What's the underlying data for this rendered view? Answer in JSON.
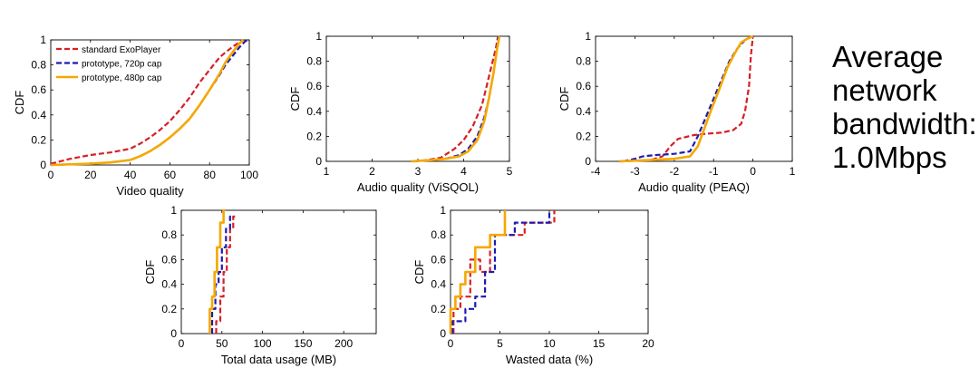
{
  "side_note": {
    "line1": "Average",
    "line2": "network",
    "line3": "bandwidth:",
    "line4": "1.0Mbps"
  },
  "colors": {
    "standard": "#d42027",
    "p720": "#1c1cb0",
    "p480": "#f5a800"
  },
  "chart_data": [
    {
      "type": "line",
      "title": "",
      "xlabel": "Video quality",
      "ylabel": "CDF",
      "xlim": [
        0,
        100
      ],
      "ylim": [
        0,
        1
      ],
      "xticks": [
        0,
        20,
        40,
        60,
        80,
        100
      ],
      "yticks": [
        0,
        0.2,
        0.4,
        0.6,
        0.8,
        1
      ],
      "legend": {
        "placement": "top-left",
        "entries": [
          "standard ExoPlayer",
          "prototype, 720p cap",
          "prototype, 480p cap"
        ]
      },
      "series": [
        {
          "name": "standard ExoPlayer",
          "color": "standard",
          "dash": true,
          "x": [
            0,
            10,
            20,
            30,
            40,
            45,
            50,
            55,
            60,
            65,
            70,
            75,
            80,
            85,
            88,
            92,
            95,
            97
          ],
          "y": [
            0.01,
            0.05,
            0.08,
            0.1,
            0.13,
            0.17,
            0.22,
            0.28,
            0.35,
            0.44,
            0.54,
            0.66,
            0.76,
            0.86,
            0.9,
            0.95,
            0.98,
            1.0
          ]
        },
        {
          "name": "prototype, 720p cap",
          "color": "p720",
          "dash": true,
          "x": [
            0,
            20,
            30,
            40,
            45,
            50,
            55,
            60,
            65,
            70,
            75,
            80,
            85,
            88,
            92,
            95,
            98,
            100
          ],
          "y": [
            0.0,
            0.01,
            0.02,
            0.04,
            0.07,
            0.11,
            0.16,
            0.22,
            0.29,
            0.37,
            0.48,
            0.6,
            0.72,
            0.8,
            0.88,
            0.94,
            0.99,
            1.0
          ]
        },
        {
          "name": "prototype, 480p cap",
          "color": "p480",
          "dash": false,
          "x": [
            0,
            20,
            30,
            40,
            45,
            50,
            55,
            60,
            65,
            70,
            75,
            80,
            85,
            88,
            92,
            95,
            97
          ],
          "y": [
            0.0,
            0.01,
            0.02,
            0.04,
            0.07,
            0.11,
            0.16,
            0.22,
            0.29,
            0.37,
            0.48,
            0.6,
            0.73,
            0.82,
            0.91,
            0.97,
            1.0
          ]
        }
      ]
    },
    {
      "type": "line",
      "title": "",
      "xlabel": "Audio quality (ViSQOL)",
      "ylabel": "CDF",
      "xlim": [
        1,
        5
      ],
      "ylim": [
        0,
        1
      ],
      "xticks": [
        1,
        2,
        3,
        4,
        5
      ],
      "yticks": [
        0,
        0.2,
        0.4,
        0.6,
        0.8,
        1
      ],
      "series": [
        {
          "name": "standard ExoPlayer",
          "color": "standard",
          "dash": true,
          "x": [
            2.9,
            3.2,
            3.5,
            3.8,
            4.0,
            4.2,
            4.4,
            4.5,
            4.6,
            4.7,
            4.75
          ],
          "y": [
            0.0,
            0.01,
            0.03,
            0.1,
            0.17,
            0.28,
            0.45,
            0.6,
            0.75,
            0.9,
            1.0
          ]
        },
        {
          "name": "prototype, 720p cap",
          "color": "p720",
          "dash": true,
          "x": [
            2.9,
            3.3,
            3.6,
            3.9,
            4.1,
            4.3,
            4.45,
            4.55,
            4.65,
            4.72,
            4.76
          ],
          "y": [
            0.0,
            0.01,
            0.02,
            0.05,
            0.1,
            0.2,
            0.35,
            0.5,
            0.7,
            0.88,
            1.0
          ]
        },
        {
          "name": "prototype, 480p cap",
          "color": "p480",
          "dash": false,
          "x": [
            2.85,
            3.3,
            3.6,
            3.9,
            4.1,
            4.3,
            4.45,
            4.55,
            4.65,
            4.72,
            4.78
          ],
          "y": [
            0.0,
            0.01,
            0.02,
            0.04,
            0.08,
            0.17,
            0.32,
            0.5,
            0.7,
            0.88,
            1.0
          ]
        }
      ]
    },
    {
      "type": "line",
      "title": "",
      "xlabel": "Audio quality (PEAQ)",
      "ylabel": "CDF",
      "xlim": [
        -4,
        1
      ],
      "ylim": [
        0,
        1
      ],
      "xticks": [
        -4,
        -3,
        -2,
        -1,
        0,
        1
      ],
      "yticks": [
        0,
        0.2,
        0.4,
        0.6,
        0.8,
        1
      ],
      "series": [
        {
          "name": "standard ExoPlayer",
          "color": "standard",
          "dash": true,
          "x": [
            -3.4,
            -2.6,
            -2.3,
            -2.1,
            -1.9,
            -1.5,
            -1.2,
            -0.8,
            -0.5,
            -0.3,
            -0.2,
            -0.1,
            -0.05,
            0.0
          ],
          "y": [
            0.0,
            0.01,
            0.04,
            0.12,
            0.18,
            0.21,
            0.22,
            0.23,
            0.25,
            0.3,
            0.4,
            0.6,
            0.85,
            1.0
          ]
        },
        {
          "name": "prototype, 720p cap",
          "color": "p720",
          "dash": true,
          "x": [
            -3.3,
            -3.0,
            -2.8,
            -2.5,
            -2.0,
            -1.6,
            -1.4,
            -1.2,
            -1.0,
            -0.8,
            -0.6,
            -0.4,
            -0.2,
            0.0
          ],
          "y": [
            0.0,
            0.02,
            0.04,
            0.05,
            0.06,
            0.08,
            0.2,
            0.35,
            0.5,
            0.65,
            0.8,
            0.9,
            0.97,
            1.0
          ]
        },
        {
          "name": "prototype, 480p cap",
          "color": "p480",
          "dash": false,
          "x": [
            -3.4,
            -2.6,
            -2.0,
            -1.6,
            -1.4,
            -1.25,
            -1.05,
            -0.85,
            -0.65,
            -0.45,
            -0.3,
            -0.15,
            0.0
          ],
          "y": [
            0.0,
            0.01,
            0.02,
            0.04,
            0.12,
            0.25,
            0.42,
            0.58,
            0.75,
            0.87,
            0.95,
            0.98,
            1.0
          ]
        }
      ]
    },
    {
      "type": "line",
      "title": "",
      "xlabel": "Total data usage (MB)",
      "ylabel": "CDF",
      "xlim": [
        0,
        240
      ],
      "ylim": [
        0,
        1
      ],
      "xticks": [
        0,
        50,
        100,
        150,
        200
      ],
      "yticks": [
        0,
        0.2,
        0.4,
        0.6,
        0.8,
        1
      ],
      "series": [
        {
          "name": "standard ExoPlayer",
          "color": "standard",
          "dash": true,
          "step": true,
          "x": [
            43,
            43,
            48,
            48,
            52,
            52,
            56,
            56,
            60,
            60,
            64,
            64,
            68
          ],
          "y": [
            0.0,
            0.1,
            0.1,
            0.3,
            0.3,
            0.5,
            0.5,
            0.7,
            0.7,
            0.85,
            0.85,
            0.95,
            0.95
          ]
        },
        {
          "name": "prototype, 720p cap",
          "color": "p720",
          "dash": true,
          "step": true,
          "x": [
            38,
            38,
            42,
            42,
            46,
            46,
            50,
            50,
            55,
            55,
            60,
            60,
            64
          ],
          "y": [
            0.0,
            0.2,
            0.2,
            0.4,
            0.4,
            0.5,
            0.5,
            0.7,
            0.7,
            0.85,
            0.85,
            0.95,
            0.95
          ]
        },
        {
          "name": "prototype, 480p cap",
          "color": "p480",
          "dash": false,
          "step": true,
          "x": [
            35,
            35,
            38,
            38,
            41,
            41,
            44,
            44,
            48,
            48,
            52,
            52,
            54
          ],
          "y": [
            0.0,
            0.2,
            0.2,
            0.3,
            0.3,
            0.5,
            0.5,
            0.7,
            0.7,
            0.9,
            0.9,
            1.0,
            1.0
          ]
        }
      ]
    },
    {
      "type": "line",
      "title": "",
      "xlabel": "Wasted data (%)",
      "ylabel": "CDF",
      "xlim": [
        0,
        20
      ],
      "ylim": [
        0,
        1
      ],
      "xticks": [
        0,
        5,
        10,
        15,
        20
      ],
      "yticks": [
        0,
        0.2,
        0.4,
        0.6,
        0.8,
        1
      ],
      "series": [
        {
          "name": "standard ExoPlayer",
          "color": "standard",
          "dash": true,
          "step": true,
          "x": [
            0.3,
            0.3,
            1.0,
            1.0,
            2.0,
            2.0,
            3.0,
            3.0,
            4.0,
            4.0,
            7.5,
            7.5,
            10.5,
            10.5
          ],
          "y": [
            0.0,
            0.2,
            0.2,
            0.3,
            0.3,
            0.6,
            0.6,
            0.5,
            0.5,
            0.8,
            0.8,
            0.9,
            0.9,
            1.0
          ]
        },
        {
          "name": "prototype, 720p cap",
          "color": "p720",
          "dash": true,
          "step": true,
          "x": [
            0.2,
            0.2,
            1.5,
            1.5,
            2.5,
            2.5,
            3.5,
            3.5,
            4.5,
            4.5,
            6.5,
            6.5,
            10.0,
            10.0
          ],
          "y": [
            0.0,
            0.1,
            0.1,
            0.2,
            0.2,
            0.3,
            0.3,
            0.5,
            0.5,
            0.8,
            0.8,
            0.9,
            0.9,
            1.0
          ]
        },
        {
          "name": "prototype, 480p cap",
          "color": "p480",
          "dash": false,
          "step": true,
          "x": [
            0.0,
            0.0,
            0.5,
            0.5,
            1.0,
            1.0,
            1.5,
            1.5,
            2.5,
            2.5,
            4.0,
            4.0,
            5.5,
            5.5
          ],
          "y": [
            0.0,
            0.2,
            0.2,
            0.3,
            0.3,
            0.4,
            0.4,
            0.5,
            0.5,
            0.7,
            0.7,
            0.8,
            0.8,
            1.0
          ]
        }
      ]
    }
  ]
}
